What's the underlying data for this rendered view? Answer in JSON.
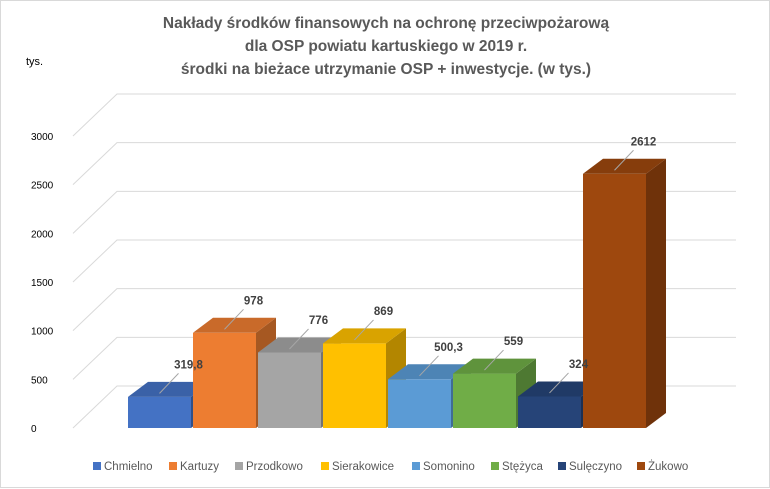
{
  "chart_data": {
    "type": "bar",
    "title": [
      "Nakłady środków finansowych na ochronę przeciwpożarową",
      "dla OSP powiatu kartuskiego w 2019 r.",
      "środki na bieżace utrzymanie OSP + inwestycje. (w tys.)"
    ],
    "ylabel": "tys.",
    "xlabel": "",
    "ylim": [
      0,
      3000
    ],
    "yticks": [
      0,
      500,
      1000,
      1500,
      2000,
      2500,
      3000
    ],
    "grid": true,
    "style": "3d",
    "legend_position": "bottom",
    "categories": [
      "Chmielno",
      "Kartuzy",
      "Przodkowo",
      "Sierakowice",
      "Somonino",
      "Stężyca",
      "Sulęczyno",
      "Żukowo"
    ],
    "values": [
      319.8,
      978,
      776,
      869,
      500.3,
      559,
      324,
      2612
    ],
    "data_labels": [
      "319,8",
      "978",
      "776",
      "869",
      "500,3",
      "559",
      "324",
      "2612"
    ],
    "colors": [
      "#4472C4",
      "#ED7D31",
      "#A5A5A5",
      "#FFC000",
      "#5B9BD5",
      "#70AD47",
      "#264478",
      "#9E480E"
    ]
  }
}
